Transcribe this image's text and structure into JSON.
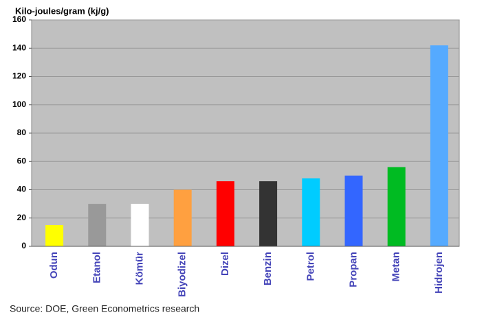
{
  "chart_data": {
    "type": "bar",
    "y_label": "Kilo-joules/gram (kj/g)",
    "categories": [
      "Odun",
      "Etanol",
      "Kömür",
      "Biyodizel",
      "Dizel",
      "Benzin",
      "Petrol",
      "Propan",
      "Metan",
      "Hidrojen"
    ],
    "values": [
      15,
      30,
      30,
      40,
      46,
      46,
      48,
      50,
      56,
      142
    ],
    "colors": [
      "#ffff00",
      "#999999",
      "#ffffff",
      "#ffa040",
      "#ff0000",
      "#333333",
      "#00ccff",
      "#3366ff",
      "#00bb22",
      "#55aaff"
    ],
    "ylim": [
      0,
      160
    ],
    "yticks": [
      0,
      20,
      40,
      60,
      80,
      100,
      120,
      140,
      160
    ],
    "grid": true,
    "source": "Source: DOE, Green Econometrics research"
  }
}
